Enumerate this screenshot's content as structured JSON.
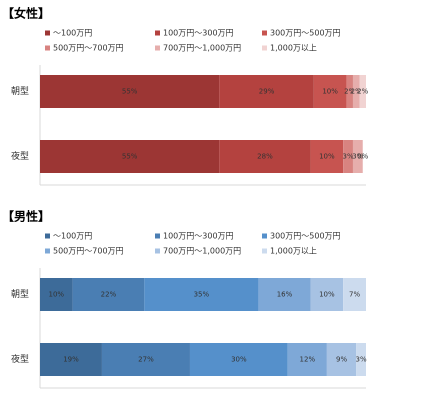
{
  "chart_data": [
    {
      "type": "stacked-bar-horizontal",
      "title": "【女性】",
      "categories": [
        "朝型",
        "夜型"
      ],
      "xlim": [
        0,
        100
      ],
      "series": [
        {
          "name": "～100万円",
          "color": "#9c3634",
          "values": [
            55,
            55
          ],
          "value_labels": [
            "55%",
            "55%"
          ]
        },
        {
          "name": "100万円～300万円",
          "color": "#b4423f",
          "values": [
            29,
            28
          ],
          "value_labels": [
            "29%",
            "28%"
          ]
        },
        {
          "name": "300万円～500万円",
          "color": "#c75450",
          "values": [
            10,
            10
          ],
          "value_labels": [
            "10%",
            "10%"
          ]
        },
        {
          "name": "500万円～700万円",
          "color": "#d88380",
          "values": [
            2,
            3
          ],
          "value_labels": [
            "2%",
            "3%"
          ]
        },
        {
          "name": "700万円～1,000万円",
          "color": "#e6aeac",
          "values": [
            2,
            3
          ],
          "value_labels": [
            "2%",
            "3%"
          ]
        },
        {
          "name": "1,000万以上",
          "color": "#f1d3d2",
          "values": [
            2,
            0
          ],
          "value_labels": [
            "2%",
            "0%"
          ]
        }
      ]
    },
    {
      "type": "stacked-bar-horizontal",
      "title": "【男性】",
      "categories": [
        "朝型",
        "夜型"
      ],
      "xlim": [
        0,
        100
      ],
      "series": [
        {
          "name": "～100万円",
          "color": "#3d6b99",
          "values": [
            10,
            19
          ],
          "value_labels": [
            "10%",
            "19%"
          ]
        },
        {
          "name": "100万円～300万円",
          "color": "#4a7eb3",
          "values": [
            22,
            27
          ],
          "value_labels": [
            "22%",
            "27%"
          ]
        },
        {
          "name": "300万円～500万円",
          "color": "#5590cb",
          "values": [
            35,
            30
          ],
          "value_labels": [
            "35%",
            "30%"
          ]
        },
        {
          "name": "500万円～700万円",
          "color": "#7ea8d7",
          "values": [
            16,
            12
          ],
          "value_labels": [
            "16%",
            "12%"
          ]
        },
        {
          "name": "700万円～1,000万円",
          "color": "#a7c2e3",
          "values": [
            10,
            9
          ],
          "value_labels": [
            "10%",
            "9%"
          ]
        },
        {
          "name": "1,000万以上",
          "color": "#ccdbee",
          "values": [
            7,
            3
          ],
          "value_labels": [
            "7%",
            "3%"
          ]
        }
      ]
    }
  ]
}
